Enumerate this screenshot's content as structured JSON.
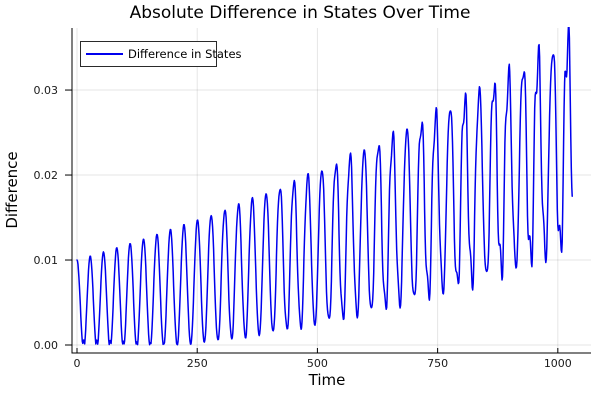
{
  "chart_data": {
    "type": "line",
    "title": "Absolute Difference in States Over Time",
    "xlabel": "Time",
    "ylabel": "Difference",
    "xlim": [
      -10.4,
      1069
    ],
    "ylim": [
      -0.00094,
      0.0373
    ],
    "xticks": [
      0,
      250,
      500,
      750,
      1000
    ],
    "xtick_labels": [
      "0",
      "250",
      "500",
      "750",
      "1000"
    ],
    "yticks": [
      0.0,
      0.01,
      0.02,
      0.03
    ],
    "ytick_labels": [
      "0.00",
      "0.01",
      "0.02",
      "0.03"
    ],
    "grid": true,
    "legend_position": "top-left",
    "series": [
      {
        "name": "Difference in States",
        "color": "#0000ee",
        "t_start": 0,
        "t_end": 1030,
        "dt": 1,
        "model": {
          "description": "y(t)=abs(base(t)+amp(t)*sin(theta)+h3(t)*sin(3*theta+h3_phase)+h2(t)*sin(2*pi*t/h2_period+h2_phase)); theta=(2*pi/chirp)*ln(1+chirp*t/period0)+pi/2; base/amp/h3/h2 are quadratics [c0,c1,c2] in t",
          "period0": 27.4,
          "chirp": 0.0035,
          "base": [
            0.0047,
            8.5e-06,
            1e-08
          ],
          "amp": [
            0.0053,
            8.5e-06,
            -1.5e-09
          ],
          "h3": [
            0,
            0,
            2.2e-09
          ],
          "h3_phase": 0.9,
          "h2": [
            0,
            0,
            1.3e-09
          ],
          "h2_period": 8.9,
          "h2_phase": 2.0
        }
      }
    ],
    "data_summary": {
      "start_value": 0.01,
      "max_value": 0.036,
      "min_value": 0.0,
      "num_oscillation_cycles": 35,
      "oscillation_period_range": [
        27.4,
        31
      ],
      "envelope_keypoints": {
        "t": [
          0,
          100,
          250,
          400,
          550,
          700,
          850,
          1020
        ],
        "upper": [
          0.01,
          0.0115,
          0.0135,
          0.018,
          0.022,
          0.026,
          0.03,
          0.036
        ],
        "lower": [
          0.0,
          0.0,
          0.0005,
          0.002,
          0.004,
          0.007,
          0.0095,
          0.0135
        ]
      }
    },
    "colors": {
      "series_blue": "#0000ee",
      "background": "#ffffff",
      "grid": "rgba(0,0,0,0.10)",
      "axis": "#000000"
    }
  }
}
